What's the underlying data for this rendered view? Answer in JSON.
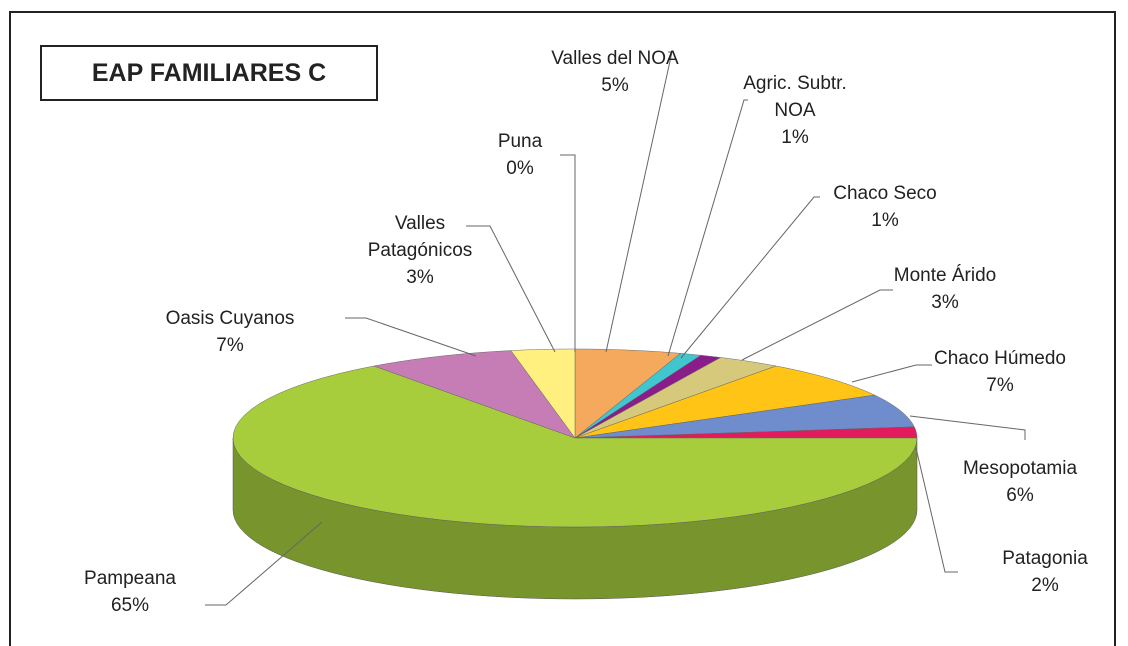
{
  "chart_data": {
    "type": "pie",
    "title": "EAP FAMILIARES C",
    "categories": [
      "Valles del NOA",
      "Agric. Subtr. NOA",
      "Chaco Seco",
      "Monte Árido",
      "Chaco Húmedo",
      "Mesopotamia",
      "Patagonia",
      "Pampeana",
      "Oasis Cuyanos",
      "Valles Patagónicos",
      "Puna"
    ],
    "values": [
      5,
      1,
      1,
      3,
      7,
      6,
      2,
      65,
      7,
      3,
      0
    ],
    "value_labels": [
      "5%",
      "1%",
      "1%",
      "3%",
      "7%",
      "6%",
      "2%",
      "65%",
      "7%",
      "3%",
      "0%"
    ],
    "colors": [
      "#f5a95c",
      "#3fc6cf",
      "#8b1d8b",
      "#d6c97c",
      "#ffc416",
      "#6f8dcd",
      "#e21b5c",
      "#a7cd3d",
      "#c67db6",
      "#fff07f",
      "#ffffff"
    ]
  }
}
